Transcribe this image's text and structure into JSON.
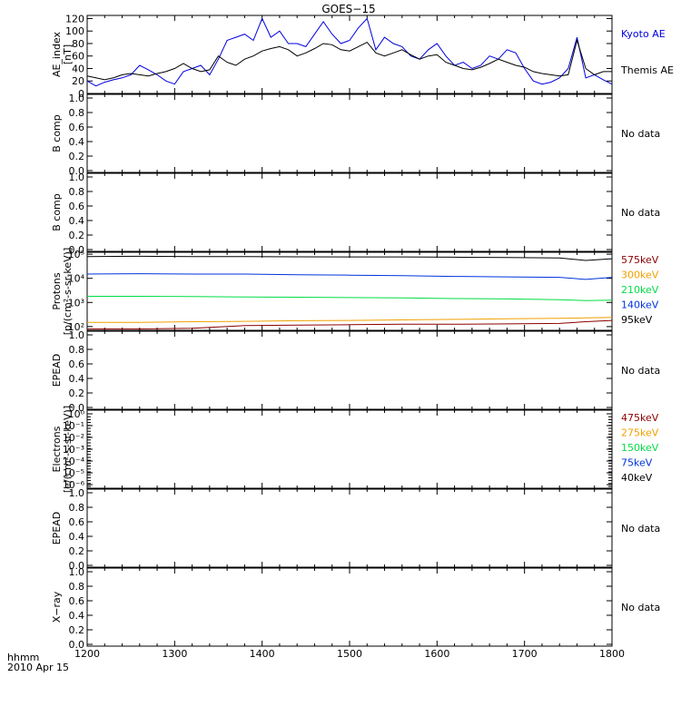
{
  "title": "GOES−15",
  "footer": {
    "line1": "hhmm",
    "line2": "2010 Apr 15"
  },
  "colors": {
    "kyoto": "#0000e0",
    "themis": "#000000",
    "e575": "#8b0000",
    "e300": "#f0a000",
    "e210": "#00dd44",
    "e140": "#0033dd",
    "e95": "#000000"
  },
  "x_axis": {
    "ticks": [
      "1200",
      "1300",
      "1400",
      "1500",
      "1600",
      "1700",
      "1800"
    ]
  },
  "panels": [
    {
      "id": "ae",
      "ylabel": [
        "AE_index",
        "[nT]"
      ],
      "yticks": [
        "0",
        "20",
        "40",
        "60",
        "80",
        "100",
        "120"
      ],
      "legend": [
        {
          "text": "Kyoto AE",
          "color": "#0000e0"
        },
        {
          "text": "Themis AE",
          "color": "#000000"
        }
      ]
    },
    {
      "id": "b1",
      "ylabel": [
        "B comp"
      ],
      "yticks": [
        "0.0",
        "0.2",
        "0.4",
        "0.6",
        "0.8",
        "1.0"
      ],
      "nodata": "No data"
    },
    {
      "id": "b2",
      "ylabel": [
        "B comp"
      ],
      "yticks": [
        "0.0",
        "0.2",
        "0.4",
        "0.6",
        "0.8",
        "1.0"
      ],
      "nodata": "No data"
    },
    {
      "id": "protons",
      "ylabel": [
        "Protons",
        "[p/(cm²-s-sr-keV)]"
      ],
      "yticks": [
        "10²",
        "10³",
        "10⁴",
        "10⁵"
      ],
      "legend": [
        {
          "text": "575keV",
          "color": "#8b0000"
        },
        {
          "text": "300keV",
          "color": "#f0a000"
        },
        {
          "text": "210keV",
          "color": "#00dd44"
        },
        {
          "text": "140keV",
          "color": "#0033dd"
        },
        {
          "text": "95keV",
          "color": "#000000"
        }
      ]
    },
    {
      "id": "epead1",
      "ylabel": [
        "EPEAD"
      ],
      "yticks": [
        "0.0",
        "0.2",
        "0.4",
        "0.6",
        "0.8",
        "1.0"
      ],
      "nodata": "No data"
    },
    {
      "id": "electrons",
      "ylabel": [
        "Electrons",
        "[e/(cm²-s-sr-keV)]"
      ],
      "yticks": [
        "10⁻⁶",
        "10⁻⁵",
        "10⁻⁴",
        "10⁻³",
        "10⁻²",
        "10⁻¹",
        "10⁰"
      ],
      "legend": [
        {
          "text": "475keV",
          "color": "#8b0000"
        },
        {
          "text": "275keV",
          "color": "#f0a000"
        },
        {
          "text": "150keV",
          "color": "#00dd44"
        },
        {
          "text": "75keV",
          "color": "#0033dd"
        },
        {
          "text": "40keV",
          "color": "#000000"
        }
      ]
    },
    {
      "id": "epead2",
      "ylabel": [
        "EPEAD"
      ],
      "yticks": [
        "0.0",
        "0.2",
        "0.4",
        "0.6",
        "0.8",
        "1.0"
      ],
      "nodata": "No data"
    },
    {
      "id": "xray",
      "ylabel": [
        "X−ray"
      ],
      "yticks": [
        "0.0",
        "0.2",
        "0.4",
        "0.6",
        "0.8",
        "1.0"
      ],
      "nodata": "No data"
    }
  ],
  "chart_data": [
    {
      "type": "line",
      "panel": "ae",
      "ylim": [
        0,
        125
      ],
      "xlim": [
        1200,
        1800
      ],
      "x": [
        1200,
        1210,
        1220,
        1230,
        1240,
        1250,
        1260,
        1270,
        1280,
        1290,
        1300,
        1310,
        1320,
        1330,
        1340,
        1350,
        1360,
        1370,
        1380,
        1390,
        1400,
        1410,
        1420,
        1430,
        1440,
        1450,
        1460,
        1470,
        1480,
        1490,
        1500,
        1510,
        1520,
        1530,
        1540,
        1550,
        1560,
        1570,
        1580,
        1590,
        1600,
        1610,
        1620,
        1630,
        1640,
        1650,
        1660,
        1670,
        1680,
        1690,
        1700,
        1710,
        1720,
        1730,
        1740,
        1750,
        1760,
        1770,
        1780,
        1790,
        1800
      ],
      "series": [
        {
          "name": "Kyoto AE",
          "color": "#0000e0",
          "values": [
            20,
            12,
            18,
            22,
            25,
            30,
            45,
            38,
            30,
            20,
            15,
            35,
            40,
            45,
            30,
            55,
            85,
            90,
            95,
            85,
            120,
            90,
            100,
            80,
            80,
            75,
            95,
            115,
            95,
            80,
            85,
            105,
            120,
            70,
            90,
            80,
            75,
            60,
            55,
            70,
            80,
            60,
            45,
            50,
            40,
            45,
            60,
            55,
            70,
            65,
            40,
            20,
            15,
            18,
            25,
            40,
            90,
            25,
            30,
            22,
            15
          ]
        },
        {
          "name": "Themis AE",
          "color": "#000000",
          "values": [
            28,
            25,
            22,
            25,
            30,
            32,
            30,
            28,
            32,
            35,
            40,
            48,
            40,
            35,
            38,
            60,
            50,
            45,
            55,
            60,
            68,
            72,
            75,
            70,
            60,
            65,
            72,
            80,
            78,
            70,
            68,
            75,
            82,
            65,
            60,
            65,
            70,
            62,
            55,
            60,
            62,
            50,
            45,
            40,
            38,
            42,
            48,
            55,
            50,
            45,
            42,
            35,
            32,
            30,
            28,
            30,
            85,
            40,
            30,
            35,
            35
          ]
        }
      ]
    },
    {
      "type": "line",
      "panel": "protons",
      "yscale": "log",
      "ylim": [
        70,
        120000
      ],
      "xlim": [
        1200,
        1800
      ],
      "x": [
        1200,
        1260,
        1320,
        1380,
        1440,
        1500,
        1560,
        1620,
        1680,
        1740,
        1770,
        1800
      ],
      "series": [
        {
          "name": "575keV",
          "color": "#8b0000",
          "values": [
            80,
            80,
            85,
            110,
            115,
            120,
            125,
            125,
            130,
            135,
            160,
            180
          ]
        },
        {
          "name": "300keV",
          "color": "#f0a000",
          "values": [
            150,
            150,
            160,
            165,
            175,
            180,
            190,
            200,
            210,
            220,
            230,
            240
          ]
        },
        {
          "name": "210keV",
          "color": "#00dd44",
          "values": [
            1800,
            1800,
            1750,
            1700,
            1650,
            1600,
            1550,
            1450,
            1400,
            1300,
            1200,
            1250
          ]
        },
        {
          "name": "140keV",
          "color": "#0033dd",
          "values": [
            15000,
            15500,
            15000,
            15000,
            14000,
            13500,
            13000,
            12000,
            11500,
            11000,
            9000,
            11000
          ]
        },
        {
          "name": "95keV",
          "color": "#000000",
          "values": [
            80000,
            82000,
            80000,
            79000,
            78000,
            77000,
            77000,
            75000,
            73000,
            70000,
            55000,
            65000
          ]
        }
      ]
    }
  ]
}
